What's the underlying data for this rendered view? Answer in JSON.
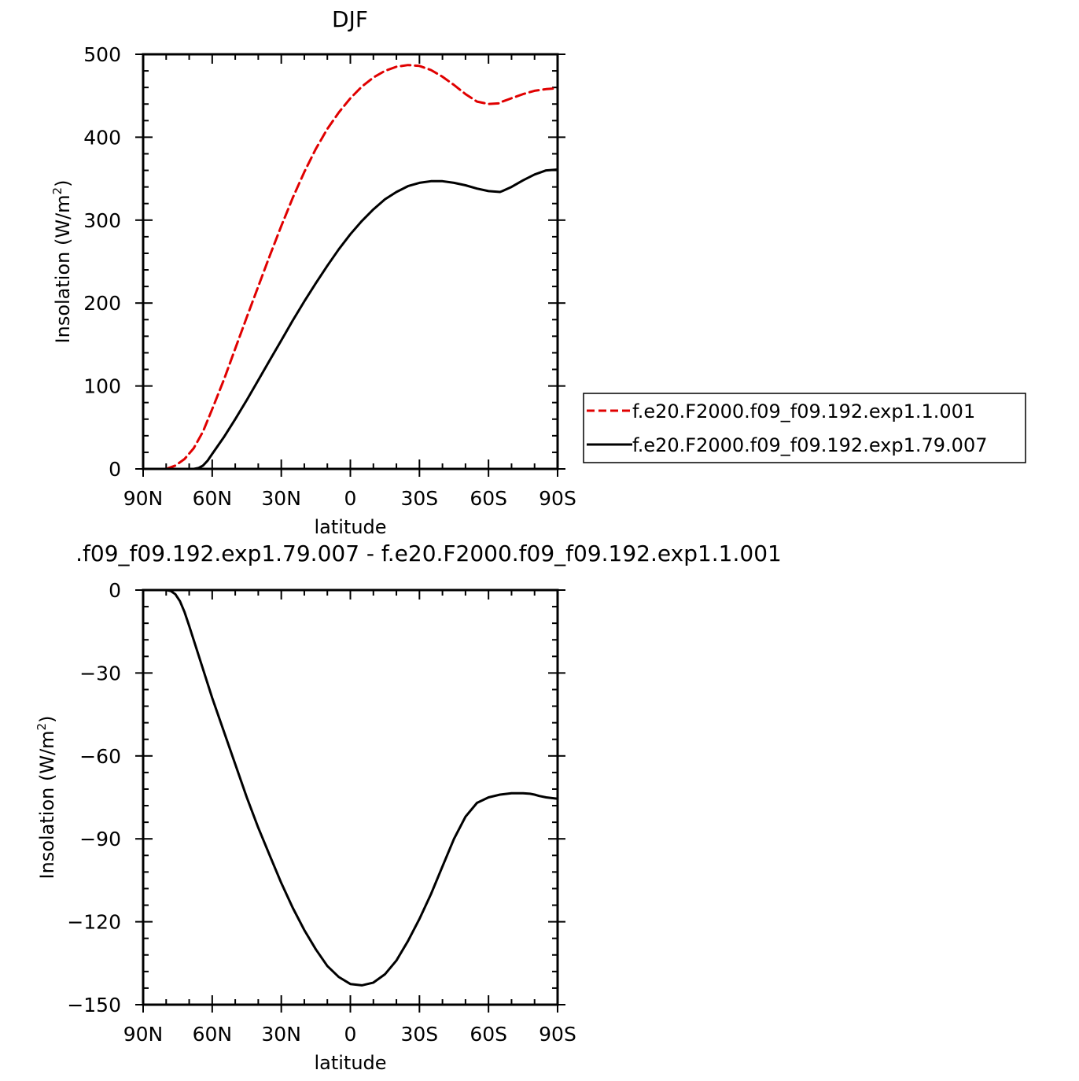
{
  "chart_data": [
    {
      "type": "line",
      "title": "DJF",
      "xlabel": "latitude",
      "ylabel": "Insolation (W/m",
      "ylabel_sup": "2",
      "ylabel_close": ")",
      "xlim": [
        90,
        -90
      ],
      "ylim": [
        0,
        500
      ],
      "xticks": [
        90,
        60,
        30,
        0,
        -30,
        -60,
        -90
      ],
      "xtick_labels": [
        "90N",
        "60N",
        "30N",
        "0",
        "30S",
        "60S",
        "90S"
      ],
      "yticks": [
        0,
        100,
        200,
        300,
        400,
        500
      ],
      "ytick_labels": [
        "0",
        "100",
        "200",
        "300",
        "400",
        "500"
      ],
      "legend_position": "right",
      "series": [
        {
          "name": "f.e20.F2000.f09_f09.192.exp1.1.001",
          "color": "#e00000",
          "dash": "dashed",
          "x": [
            80,
            76,
            72,
            68,
            64,
            60,
            55,
            50,
            45,
            40,
            35,
            30,
            25,
            20,
            15,
            10,
            5,
            0,
            -5,
            -10,
            -15,
            -20,
            -25,
            -30,
            -35,
            -40,
            -45,
            -50,
            -55,
            -60,
            -65,
            -66,
            -70,
            -75,
            -80,
            -85,
            -90
          ],
          "y": [
            0,
            4,
            12,
            25,
            45,
            72,
            107,
            145,
            183,
            220,
            257,
            293,
            327,
            358,
            386,
            410,
            430,
            447,
            461,
            472,
            480,
            485,
            487,
            486,
            481,
            473,
            463,
            452,
            443,
            440,
            441,
            443,
            447,
            452,
            456,
            458,
            459
          ]
        },
        {
          "name": "f.e20.F2000.f09_f09.192.exp1.79.007",
          "color": "#000000",
          "dash": "solid",
          "x": [
            68,
            66,
            64,
            62,
            60,
            55,
            50,
            45,
            40,
            35,
            30,
            25,
            20,
            15,
            10,
            5,
            0,
            -5,
            -10,
            -15,
            -20,
            -25,
            -30,
            -35,
            -40,
            -45,
            -50,
            -55,
            -60,
            -65,
            -66,
            -70,
            -75,
            -80,
            -85,
            -90
          ],
          "y": [
            0,
            1,
            4,
            10,
            18,
            38,
            60,
            83,
            107,
            131,
            155,
            179,
            202,
            224,
            245,
            265,
            283,
            299,
            313,
            325,
            334,
            341,
            345,
            347,
            347,
            345,
            342,
            338,
            335,
            334,
            335,
            340,
            348,
            355,
            360,
            361
          ]
        }
      ]
    },
    {
      "type": "line",
      "title": ".f09_f09.192.exp1.79.007 - f.e20.F2000.f09_f09.192.exp1.1.001",
      "xlabel": "latitude",
      "ylabel": "Insolation (W/m",
      "ylabel_sup": "2",
      "ylabel_close": ")",
      "xlim": [
        90,
        -90
      ],
      "ylim": [
        -150,
        0
      ],
      "xticks": [
        90,
        60,
        30,
        0,
        -30,
        -60,
        -90
      ],
      "xtick_labels": [
        "90N",
        "60N",
        "30N",
        "0",
        "30S",
        "60S",
        "90S"
      ],
      "yticks": [
        0,
        -30,
        -60,
        -90,
        -120,
        -150
      ],
      "ytick_labels": [
        "0",
        "−30",
        "−60",
        "−90",
        "−120",
        "−150"
      ],
      "series": [
        {
          "color": "#000000",
          "dash": "solid",
          "x": [
            90,
            80,
            78,
            76,
            74,
            72,
            70,
            65,
            60,
            55,
            50,
            45,
            40,
            35,
            30,
            25,
            20,
            15,
            10,
            5,
            0,
            -5,
            -10,
            -15,
            -20,
            -25,
            -30,
            -35,
            -40,
            -45,
            -50,
            -55,
            -60,
            -65,
            -70,
            -75,
            -78,
            -80,
            -82,
            -85,
            -90
          ],
          "y": [
            0,
            0,
            -0.3,
            -1.5,
            -4,
            -8,
            -13,
            -26,
            -39,
            -51,
            -63,
            -75,
            -86,
            -96,
            -106,
            -115,
            -123,
            -130,
            -136,
            -140,
            -142.5,
            -143,
            -142,
            -139,
            -134,
            -127,
            -119,
            -110,
            -100,
            -90,
            -82,
            -77,
            -75,
            -74,
            -73.5,
            -73.5,
            -73.7,
            -74,
            -74.5,
            -75,
            -75.5
          ]
        }
      ]
    }
  ]
}
